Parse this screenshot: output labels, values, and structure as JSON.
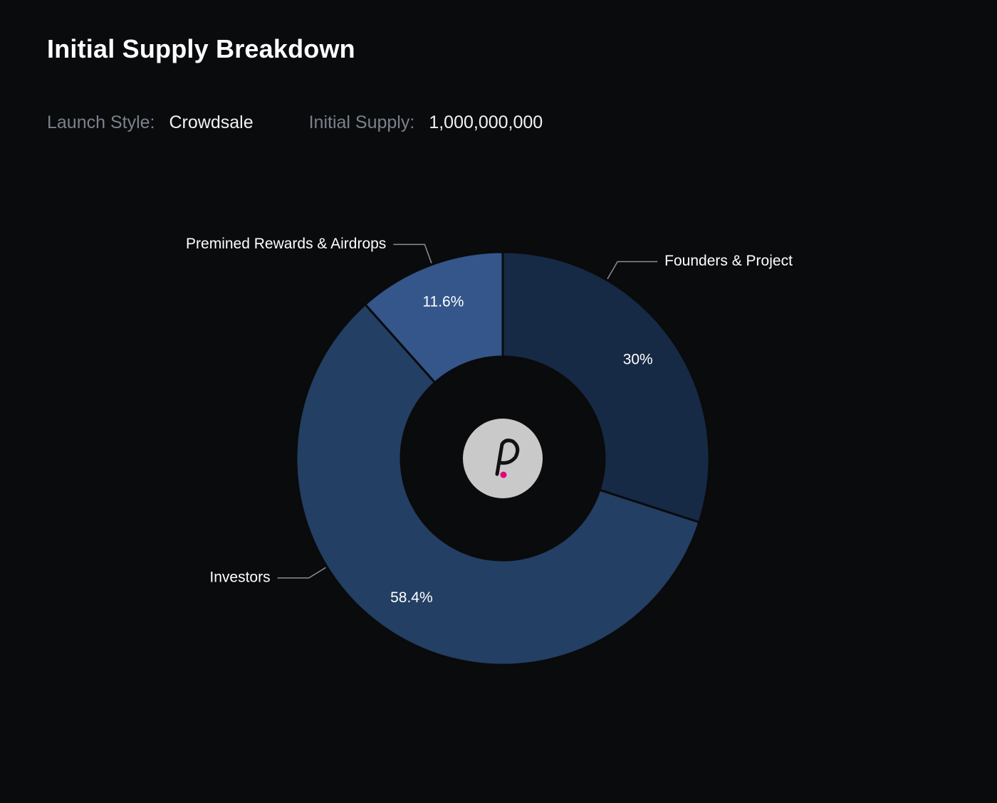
{
  "header": {
    "title": "Initial Supply Breakdown",
    "launch_style_label": "Launch Style:",
    "launch_style_value": "Crowdsale",
    "initial_supply_label": "Initial Supply:",
    "initial_supply_value": "1,000,000,000"
  },
  "center_logo": {
    "icon": "polkadot-logo-icon",
    "letter": "P",
    "accent_color": "#e6007a"
  },
  "chart_data": {
    "type": "pie",
    "donut": true,
    "title": "",
    "start_at": "top",
    "direction": "clockwise",
    "slices": [
      {
        "label": "Founders & Project",
        "value": 30,
        "display": "30%",
        "color": "#162a46"
      },
      {
        "label": "Investors",
        "value": 58.4,
        "display": "58.4%",
        "color": "#233f63"
      },
      {
        "label": "Premined Rewards & Airdrops",
        "value": 11.6,
        "display": "11.6%",
        "color": "#34568a"
      }
    ]
  }
}
